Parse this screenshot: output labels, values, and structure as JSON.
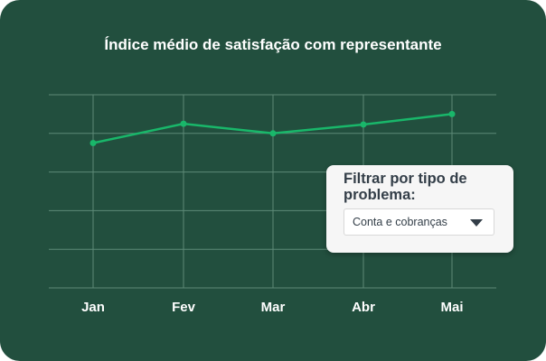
{
  "chart_data": {
    "type": "line",
    "title": "Índice médio de satisfação com representante",
    "categories": [
      "Jan",
      "Fev",
      "Mar",
      "Abr",
      "Mai"
    ],
    "series": [
      {
        "name": "Índice médio",
        "values": [
          3.75,
          4.25,
          4.0,
          4.23,
          4.5
        ]
      }
    ],
    "ylim": [
      0,
      5
    ],
    "grid": true,
    "colors": {
      "line": "#19b76a",
      "grid": "#5d8a77",
      "background": "#224f3e"
    }
  },
  "filter": {
    "label": "Filtrar por tipo de problema:",
    "selected": "Conta e cobranças"
  }
}
